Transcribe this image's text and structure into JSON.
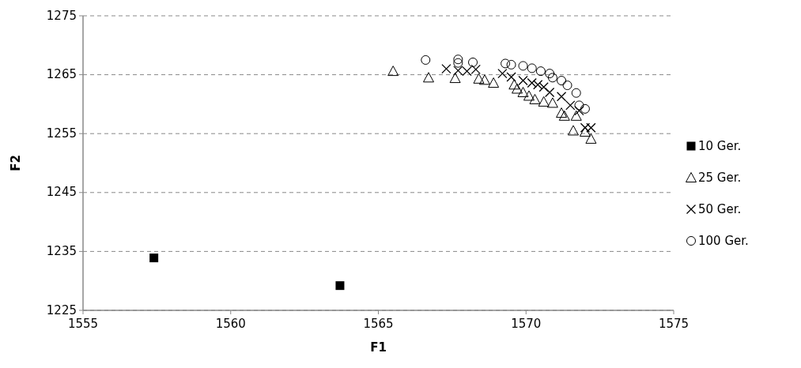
{
  "chart_data": {
    "type": "scatter",
    "xlabel": "F1",
    "ylabel": "F2",
    "xlim": [
      1555,
      1575
    ],
    "xticks": [
      1555,
      1560,
      1565,
      1570,
      1575
    ],
    "ylim": [
      1225,
      1275
    ],
    "yticks": [
      1225,
      1235,
      1245,
      1255,
      1265,
      1275
    ],
    "grid": "y",
    "legend": "right",
    "series": [
      {
        "name": "10 Ger.",
        "color": "#000000",
        "marker": "square",
        "x": [
          1557.4,
          1563.7
        ],
        "values": [
          1233.9,
          1229.2
        ]
      },
      {
        "name": "25 Ger.",
        "color": "#000000",
        "marker": "triangle",
        "x": [
          1565.5,
          1566.7,
          1567.6,
          1568.4,
          1568.6,
          1568.9,
          1569.6,
          1569.7,
          1569.9,
          1570.1,
          1570.3,
          1570.6,
          1570.9,
          1571.2,
          1571.3,
          1571.7,
          1571.6,
          1572.0,
          1572.2
        ],
        "values": [
          1265.6,
          1264.5,
          1264.4,
          1264.3,
          1264.1,
          1263.6,
          1263.3,
          1262.6,
          1262.0,
          1261.4,
          1260.8,
          1260.4,
          1260.2,
          1258.5,
          1258.0,
          1258.0,
          1255.5,
          1255.3,
          1254.1
        ]
      },
      {
        "name": "50 Ger.",
        "color": "#000000",
        "marker": "cross",
        "x": [
          1567.3,
          1567.7,
          1568.0,
          1568.3,
          1569.2,
          1569.5,
          1569.9,
          1570.2,
          1570.4,
          1570.6,
          1570.8,
          1571.2,
          1571.5,
          1571.8,
          1572.0,
          1572.2
        ],
        "values": [
          1266.0,
          1265.7,
          1265.6,
          1265.9,
          1265.2,
          1264.6,
          1264.0,
          1263.6,
          1263.3,
          1262.9,
          1262.0,
          1261.3,
          1259.8,
          1258.9,
          1256.0,
          1256.0
        ]
      },
      {
        "name": "100 Ger.",
        "color": "#000000",
        "marker": "circle",
        "x": [
          1566.6,
          1567.7,
          1567.7,
          1568.2,
          1569.3,
          1569.5,
          1569.9,
          1570.2,
          1570.5,
          1570.8,
          1570.9,
          1571.2,
          1571.4,
          1571.7,
          1571.8,
          1572.0
        ],
        "values": [
          1267.5,
          1267.6,
          1267.0,
          1267.1,
          1266.9,
          1266.7,
          1266.5,
          1266.1,
          1265.6,
          1265.2,
          1264.5,
          1264.0,
          1263.2,
          1261.9,
          1259.8,
          1259.2
        ]
      }
    ]
  }
}
